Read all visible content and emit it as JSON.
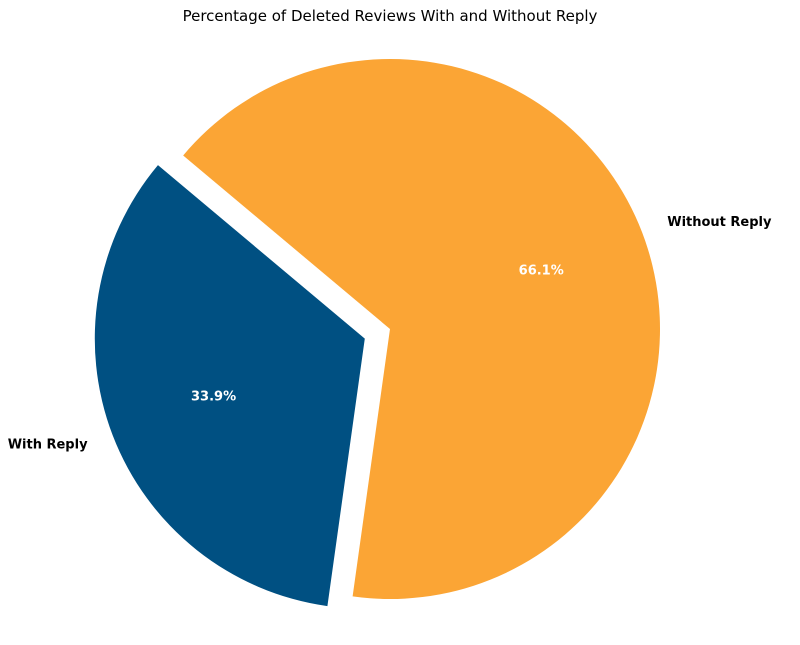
{
  "chart_data": {
    "type": "pie",
    "title": "Percentage of Deleted Reviews With and Without Reply",
    "slices": [
      {
        "label": "With Reply",
        "value": 33.9,
        "display": "33.9%",
        "color": "#005082",
        "exploded": true
      },
      {
        "label": "Without Reply",
        "value": 66.1,
        "display": "66.1%",
        "color": "#FBA535",
        "exploded": false
      }
    ]
  }
}
